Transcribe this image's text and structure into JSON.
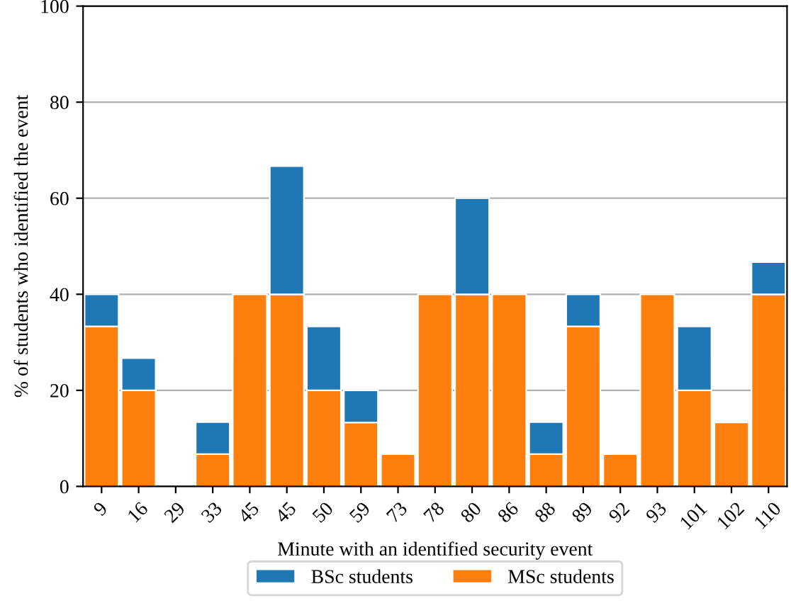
{
  "chart_data": {
    "type": "bar",
    "stacked": true,
    "xlabel": "Minute with an identified security event",
    "ylabel": "% of students who identified the event",
    "categories": [
      "9",
      "16",
      "29",
      "33",
      "45",
      "45",
      "50",
      "59",
      "73",
      "78",
      "80",
      "86",
      "88",
      "89",
      "92",
      "93",
      "101",
      "102",
      "110"
    ],
    "series": [
      {
        "name": "MSc students",
        "color": "#ff7f0e",
        "values": [
          33.3,
          20,
          null,
          6.7,
          40,
          40,
          20,
          13.3,
          6.7,
          40,
          40,
          40,
          6.7,
          33.3,
          6.7,
          40,
          20,
          13.3,
          40
        ]
      },
      {
        "name": "BSc students",
        "color": "#1f77b4",
        "values": [
          6.7,
          6.7,
          null,
          6.7,
          null,
          26.7,
          13.3,
          6.7,
          null,
          null,
          20,
          null,
          6.7,
          6.7,
          null,
          null,
          13.3,
          null,
          6.7
        ]
      }
    ],
    "ylim": [
      0,
      100
    ],
    "yticks": [
      0,
      20,
      40,
      60,
      80,
      100
    ],
    "grid": "y",
    "legend": "bottom"
  }
}
